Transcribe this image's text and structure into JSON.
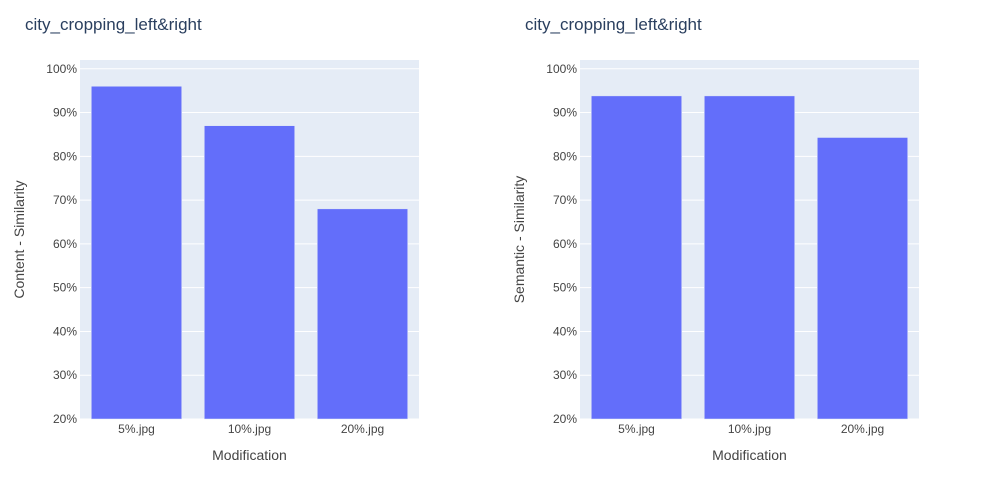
{
  "chart_data": [
    {
      "type": "bar",
      "title": "city_cropping_left&right",
      "xlabel": "Modification",
      "ylabel": "Content - Similarity",
      "categories": [
        "5%.jpg",
        "10%.jpg",
        "20%.jpg"
      ],
      "values": [
        0.96,
        0.87,
        0.68
      ],
      "ylim": [
        0.2,
        1.02
      ],
      "yticks": [
        0.2,
        0.3,
        0.4,
        0.5,
        0.6,
        0.7,
        0.8,
        0.9,
        1.0
      ],
      "ytick_labels": [
        "20%",
        "30%",
        "40%",
        "50%",
        "60%",
        "70%",
        "80%",
        "90%",
        "100%"
      ],
      "grid": true,
      "bar_color": "#636efa",
      "plot_bg": "#e5ecf6"
    },
    {
      "type": "bar",
      "title": "city_cropping_left&right",
      "xlabel": "Modification",
      "ylabel": "Semantic - Similarity",
      "categories": [
        "5%.jpg",
        "10%.jpg",
        "20%.jpg"
      ],
      "values": [
        0.938,
        0.938,
        0.843
      ],
      "ylim": [
        0.2,
        1.02
      ],
      "yticks": [
        0.2,
        0.3,
        0.4,
        0.5,
        0.6,
        0.7,
        0.8,
        0.9,
        1.0
      ],
      "ytick_labels": [
        "20%",
        "30%",
        "40%",
        "50%",
        "60%",
        "70%",
        "80%",
        "90%",
        "100%"
      ],
      "grid": true,
      "bar_color": "#636efa",
      "plot_bg": "#e5ecf6"
    }
  ]
}
